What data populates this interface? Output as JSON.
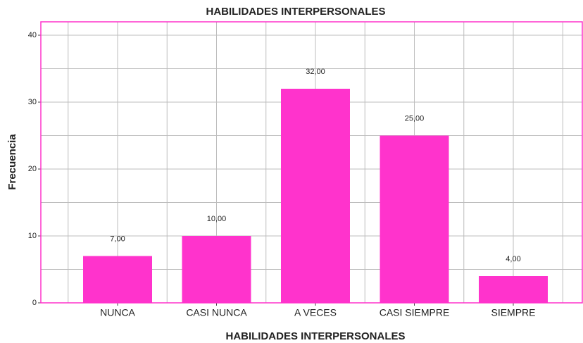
{
  "chart_data": {
    "type": "bar",
    "title": "HABILIDADES INTERPERSONALES",
    "x_label": "HABILIDADES INTERPERSONALES",
    "y_label": "Frecuencia",
    "categories": [
      "NUNCA",
      "CASI NUNCA",
      "A VECES",
      "CASI SIEMPRE",
      "SIEMPRE"
    ],
    "values": [
      7,
      10,
      32,
      25,
      4
    ],
    "value_labels": [
      "7,00",
      "10,00",
      "32,00",
      "25,00",
      "4,00"
    ],
    "color": "#ff33cc",
    "ylim": [
      0,
      42
    ],
    "yticks": [
      0,
      10,
      20,
      30,
      40
    ],
    "minor_yticks": [
      5,
      15,
      25,
      35
    ],
    "grid": true
  }
}
